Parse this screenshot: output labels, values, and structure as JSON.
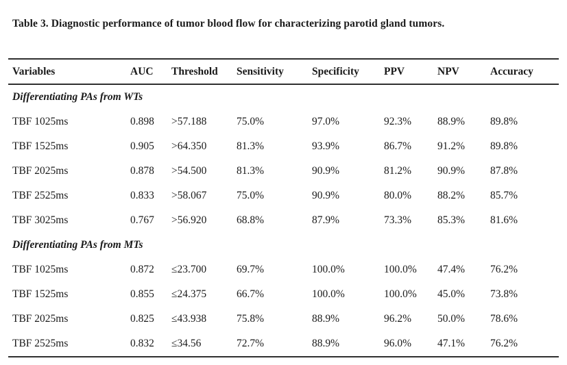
{
  "page": {
    "title": "Table 3. Diagnostic performance of tumor blood flow for characterizing parotid gland tumors."
  },
  "table": {
    "columns": [
      "Variables",
      "AUC",
      "Threshold",
      "Sensitivity",
      "Specificity",
      "PPV",
      "NPV",
      "Accuracy"
    ],
    "sections": [
      {
        "label": "Differentiating PAs from WTs",
        "rows": [
          [
            "TBF 1025ms",
            "0.898",
            ">57.188",
            "75.0%",
            "97.0%",
            "92.3%",
            "88.9%",
            "89.8%"
          ],
          [
            "TBF 1525ms",
            "0.905",
            ">64.350",
            "81.3%",
            "93.9%",
            "86.7%",
            "91.2%",
            "89.8%"
          ],
          [
            "TBF 2025ms",
            "0.878",
            ">54.500",
            "81.3%",
            "90.9%",
            "81.2%",
            "90.9%",
            "87.8%"
          ],
          [
            "TBF 2525ms",
            "0.833",
            ">58.067",
            "75.0%",
            "90.9%",
            "80.0%",
            "88.2%",
            "85.7%"
          ],
          [
            "TBF 3025ms",
            "0.767",
            ">56.920",
            "68.8%",
            "87.9%",
            "73.3%",
            "85.3%",
            "81.6%"
          ]
        ]
      },
      {
        "label": "Differentiating PAs from MTs",
        "rows": [
          [
            "TBF 1025ms",
            "0.872",
            "≤23.700",
            "69.7%",
            "100.0%",
            "100.0%",
            "47.4%",
            "76.2%"
          ],
          [
            "TBF 1525ms",
            "0.855",
            "≤24.375",
            "66.7%",
            "100.0%",
            "100.0%",
            "45.0%",
            "73.8%"
          ],
          [
            "TBF 2025ms",
            "0.825",
            "≤43.938",
            "75.8%",
            "88.9%",
            "96.2%",
            "50.0%",
            "78.6%"
          ],
          [
            "TBF 2525ms",
            "0.832",
            "≤34.56",
            "72.7%",
            "88.9%",
            "96.0%",
            "47.1%",
            "76.2%"
          ]
        ]
      }
    ]
  },
  "colors": {
    "text": "#1a1a1a",
    "rule": "#2e2e2e",
    "background": "#ffffff"
  }
}
